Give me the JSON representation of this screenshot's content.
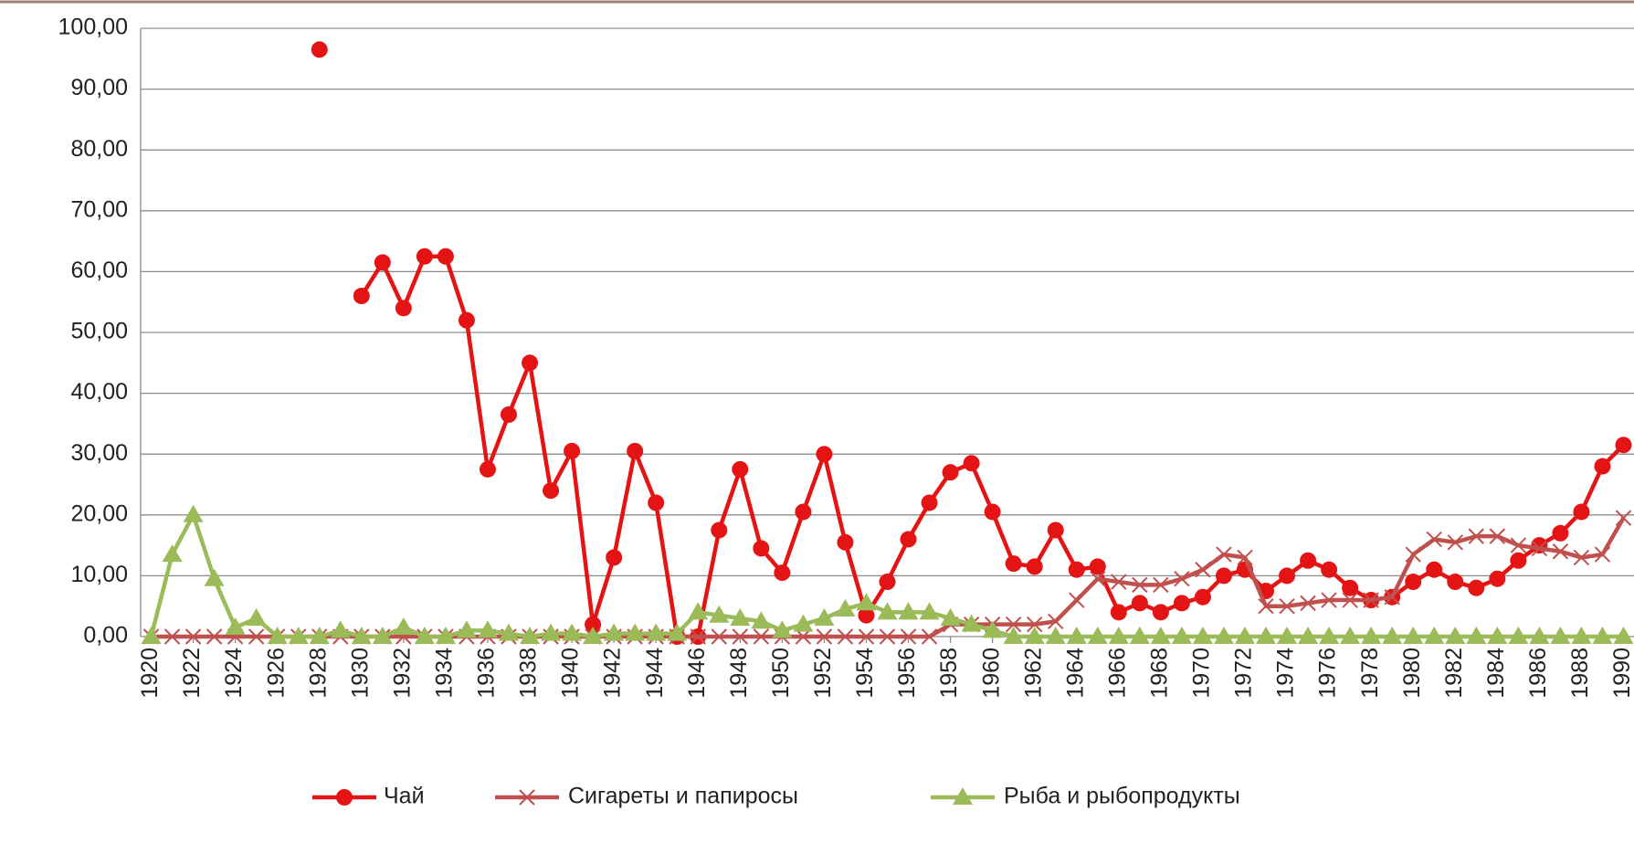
{
  "chart_data": {
    "type": "line",
    "x": [
      1920,
      1921,
      1922,
      1923,
      1924,
      1925,
      1926,
      1927,
      1928,
      1929,
      1930,
      1931,
      1932,
      1933,
      1934,
      1935,
      1936,
      1937,
      1938,
      1939,
      1940,
      1941,
      1942,
      1943,
      1944,
      1945,
      1946,
      1947,
      1948,
      1949,
      1950,
      1951,
      1952,
      1953,
      1954,
      1955,
      1956,
      1957,
      1958,
      1959,
      1960,
      1961,
      1962,
      1963,
      1964,
      1965,
      1966,
      1967,
      1968,
      1969,
      1970,
      1971,
      1972,
      1973,
      1974,
      1975,
      1976,
      1977,
      1978,
      1979,
      1980,
      1981,
      1982,
      1983,
      1984,
      1985,
      1986,
      1987,
      1988,
      1989,
      1990
    ],
    "series": [
      {
        "name": "Чай",
        "color": "#e41414",
        "marker": "circle",
        "values": [
          null,
          null,
          null,
          null,
          null,
          null,
          null,
          null,
          96.5,
          null,
          56,
          61.5,
          54,
          62.5,
          62.5,
          52,
          27.5,
          36.5,
          45,
          24,
          30.5,
          2,
          13,
          30.5,
          22,
          0,
          0,
          17.5,
          27.5,
          14.5,
          10.5,
          20.5,
          30,
          15.5,
          3.5,
          9,
          16,
          22,
          27,
          28.5,
          20.5,
          12,
          11.5,
          17.5,
          11,
          11.5,
          4,
          5.5,
          4,
          5.5,
          6.5,
          10,
          11,
          7.5,
          10,
          12.5,
          11,
          8,
          6,
          6.5,
          9,
          11,
          9,
          8,
          9.5,
          12.5,
          15,
          17,
          20.5,
          28,
          31.5
        ]
      },
      {
        "name": "Сигареты и папиросы",
        "color": "#c0504d",
        "marker": "cross",
        "values": [
          0,
          0,
          0,
          0,
          0,
          0,
          0,
          0,
          0,
          0,
          0,
          0,
          0,
          0,
          0,
          0,
          0,
          0,
          0,
          0,
          0,
          0,
          0,
          0,
          0,
          0,
          0,
          0,
          0,
          0,
          0,
          0,
          0,
          0,
          0,
          0,
          0,
          0,
          2,
          2,
          2,
          2,
          2,
          2.5,
          6,
          9.5,
          9,
          8.5,
          8.5,
          9.5,
          11,
          13.5,
          13,
          5,
          5,
          5.5,
          6,
          6,
          6,
          6.5,
          13.5,
          16,
          15.5,
          16.5,
          16.5,
          15,
          14.5,
          14,
          13,
          13.5,
          19.5
        ]
      },
      {
        "name": "Рыба и рыбопродукты",
        "color": "#9bbb59",
        "marker": "triangle",
        "values": [
          0,
          13.5,
          20,
          9.5,
          1.5,
          3,
          0,
          0,
          0,
          1,
          0,
          0,
          1.5,
          0,
          0,
          1,
          1,
          0.5,
          0,
          0.5,
          0.5,
          0,
          0.5,
          0.5,
          0.5,
          0.5,
          4,
          3.5,
          3,
          2.5,
          1,
          2,
          3,
          4.5,
          5.5,
          4,
          4,
          4,
          3,
          2,
          1,
          0,
          0,
          0,
          0,
          0,
          0,
          0,
          0,
          0,
          0,
          0,
          0,
          0,
          0,
          0,
          0,
          0,
          0,
          0,
          0,
          0,
          0,
          0,
          0,
          0,
          0,
          0,
          0,
          0,
          0
        ]
      }
    ],
    "xlim": [
      1919.5,
      1990.5
    ],
    "xticks": [
      1920,
      1922,
      1924,
      1926,
      1928,
      1930,
      1932,
      1934,
      1936,
      1938,
      1940,
      1942,
      1944,
      1946,
      1948,
      1950,
      1952,
      1954,
      1956,
      1958,
      1960,
      1962,
      1964,
      1966,
      1968,
      1970,
      1972,
      1974,
      1976,
      1978,
      1980,
      1982,
      1984,
      1986,
      1988,
      1990
    ],
    "ylim": [
      0,
      100
    ],
    "yticks": [
      {
        "value": 0,
        "label": "0,00"
      },
      {
        "value": 10,
        "label": "10,00"
      },
      {
        "value": 20,
        "label": "20,00"
      },
      {
        "value": 30,
        "label": "30,00"
      },
      {
        "value": 40,
        "label": "40,00"
      },
      {
        "value": 50,
        "label": "50,00"
      },
      {
        "value": 60,
        "label": "60,00"
      },
      {
        "value": 70,
        "label": "70,00"
      },
      {
        "value": 80,
        "label": "80,00"
      },
      {
        "value": 90,
        "label": "90,00"
      },
      {
        "value": 100,
        "label": "100,00"
      }
    ],
    "grid": true,
    "legend": "bottom"
  }
}
